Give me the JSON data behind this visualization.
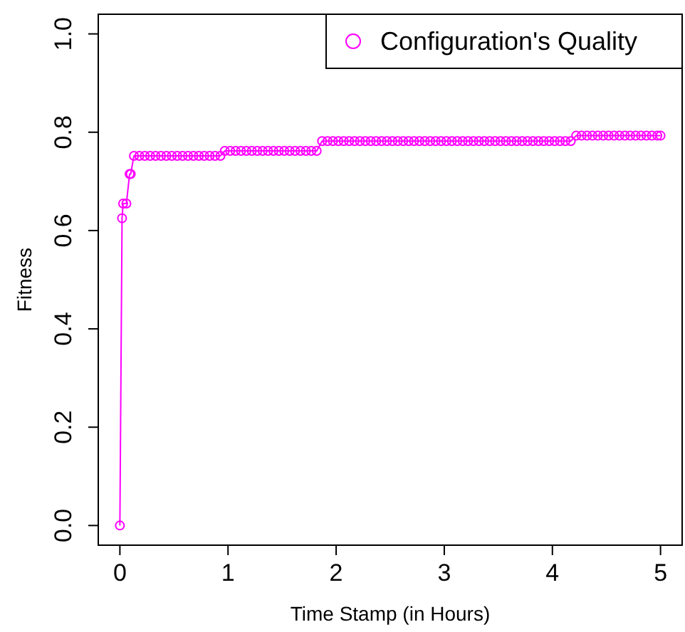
{
  "chart_data": {
    "type": "line",
    "xlabel": "Time Stamp (in Hours)",
    "ylabel": "Fitness",
    "x": [
      0,
      0.02,
      0.03,
      0.06,
      0.09,
      0.1,
      0.13,
      0.18,
      0.23,
      0.28,
      0.33,
      0.38,
      0.43,
      0.48,
      0.53,
      0.58,
      0.63,
      0.68,
      0.73,
      0.78,
      0.83,
      0.88,
      0.93,
      0.97,
      1.02,
      1.07,
      1.12,
      1.17,
      1.22,
      1.27,
      1.32,
      1.37,
      1.42,
      1.47,
      1.52,
      1.57,
      1.62,
      1.67,
      1.72,
      1.77,
      1.82,
      1.87,
      1.92,
      1.97,
      2.02,
      2.07,
      2.12,
      2.17,
      2.22,
      2.27,
      2.32,
      2.37,
      2.42,
      2.47,
      2.52,
      2.57,
      2.62,
      2.67,
      2.72,
      2.77,
      2.82,
      2.87,
      2.92,
      2.97,
      3.02,
      3.07,
      3.12,
      3.17,
      3.22,
      3.27,
      3.32,
      3.37,
      3.42,
      3.47,
      3.52,
      3.57,
      3.62,
      3.67,
      3.72,
      3.77,
      3.82,
      3.87,
      3.92,
      3.97,
      4.02,
      4.07,
      4.12,
      4.17,
      4.22,
      4.27,
      4.32,
      4.37,
      4.42,
      4.47,
      4.52,
      4.57,
      4.62,
      4.67,
      4.72,
      4.77,
      4.82,
      4.87,
      4.92,
      4.97,
      5.0
    ],
    "series": [
      {
        "name": "Configuration's Quality",
        "color": "#ff00ff",
        "values": [
          0,
          0.625,
          0.655,
          0.655,
          0.715,
          0.715,
          0.752,
          0.752,
          0.752,
          0.752,
          0.752,
          0.752,
          0.752,
          0.752,
          0.752,
          0.752,
          0.752,
          0.752,
          0.752,
          0.752,
          0.752,
          0.752,
          0.752,
          0.762,
          0.762,
          0.762,
          0.762,
          0.762,
          0.762,
          0.762,
          0.762,
          0.762,
          0.762,
          0.762,
          0.762,
          0.762,
          0.762,
          0.762,
          0.762,
          0.762,
          0.762,
          0.782,
          0.782,
          0.782,
          0.782,
          0.782,
          0.782,
          0.782,
          0.782,
          0.782,
          0.782,
          0.782,
          0.782,
          0.782,
          0.782,
          0.782,
          0.782,
          0.782,
          0.782,
          0.782,
          0.782,
          0.782,
          0.782,
          0.782,
          0.782,
          0.782,
          0.782,
          0.782,
          0.782,
          0.782,
          0.782,
          0.782,
          0.782,
          0.782,
          0.782,
          0.782,
          0.782,
          0.782,
          0.782,
          0.782,
          0.782,
          0.782,
          0.782,
          0.782,
          0.782,
          0.782,
          0.782,
          0.782,
          0.793,
          0.793,
          0.793,
          0.793,
          0.793,
          0.793,
          0.793,
          0.793,
          0.793,
          0.793,
          0.793,
          0.793,
          0.793,
          0.793,
          0.793,
          0.793,
          0.793
        ]
      }
    ],
    "xlim": [
      -0.2,
      5.2
    ],
    "ylim": [
      -0.04,
      1.04
    ],
    "xticks": [
      0,
      1,
      2,
      3,
      4,
      5
    ],
    "yticks": [
      {
        "value": 0,
        "label": "0.0"
      },
      {
        "value": 0.2,
        "label": "0.2"
      },
      {
        "value": 0.4,
        "label": "0.4"
      },
      {
        "value": 0.6,
        "label": "0.6"
      },
      {
        "value": 0.8,
        "label": "0.8"
      },
      {
        "value": 1,
        "label": "1.0"
      }
    ],
    "marker": "circle",
    "line_style": "solid",
    "legend": "top right",
    "grid": false
  }
}
